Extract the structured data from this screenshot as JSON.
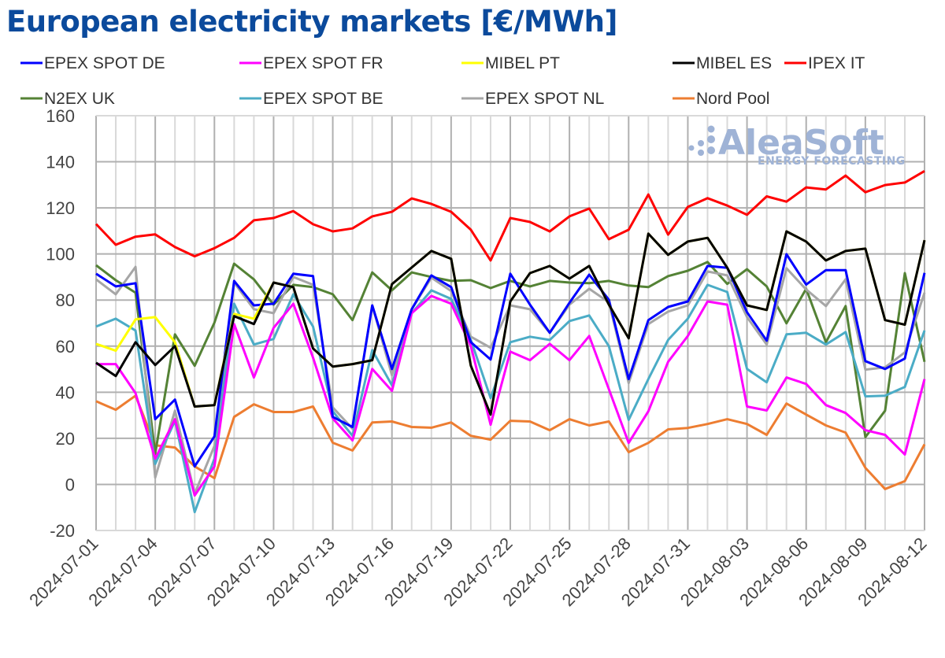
{
  "chart_data": {
    "type": "line",
    "title": "European electricity markets [€/MWh]",
    "xlabel": "",
    "ylabel": "€/MWh",
    "ylim": [
      -20,
      160
    ],
    "yticks": [
      -20,
      0,
      20,
      40,
      60,
      80,
      100,
      120,
      140,
      160
    ],
    "grid": true,
    "legend_position": "top",
    "watermark": {
      "main": "AleaSoft",
      "sub": "ENERGY FORECASTING"
    },
    "x": [
      "2024-07-01",
      "2024-07-02",
      "2024-07-03",
      "2024-07-04",
      "2024-07-05",
      "2024-07-06",
      "2024-07-07",
      "2024-07-08",
      "2024-07-09",
      "2024-07-10",
      "2024-07-11",
      "2024-07-12",
      "2024-07-13",
      "2024-07-14",
      "2024-07-15",
      "2024-07-16",
      "2024-07-17",
      "2024-07-18",
      "2024-07-19",
      "2024-07-20",
      "2024-07-21",
      "2024-07-22",
      "2024-07-23",
      "2024-07-24",
      "2024-07-25",
      "2024-07-26",
      "2024-07-27",
      "2024-07-28",
      "2024-07-29",
      "2024-07-30",
      "2024-07-31",
      "2024-08-01",
      "2024-08-02",
      "2024-08-03",
      "2024-08-04",
      "2024-08-05",
      "2024-08-06",
      "2024-08-07",
      "2024-08-08",
      "2024-08-09",
      "2024-08-10",
      "2024-08-11",
      "2024-08-12"
    ],
    "xtick_labels": [
      "2024-07-01",
      "2024-07-04",
      "2024-07-07",
      "2024-07-10",
      "2024-07-13",
      "2024-07-16",
      "2024-07-19",
      "2024-07-22",
      "2024-07-25",
      "2024-07-28",
      "2024-07-31",
      "2024-08-03",
      "2024-08-06",
      "2024-08-09",
      "2024-08-12"
    ],
    "series": [
      {
        "name": "EPEX SPOT DE",
        "color": "#0000ff",
        "values": [
          91.4,
          85.9,
          87.3,
          28.3,
          36.8,
          7.8,
          20.8,
          88.3,
          77.7,
          78.4,
          91.4,
          90.4,
          29.3,
          24.9,
          77.7,
          50.1,
          76.0,
          90.7,
          85.6,
          61.7,
          54.2,
          91.4,
          78.0,
          65.8,
          78.8,
          91.0,
          80.1,
          45.7,
          71.3,
          77.0,
          79.4,
          94.8,
          94.0,
          74.7,
          62.4,
          99.9,
          86.7,
          93.0,
          93.0,
          53.5,
          50.1,
          54.6,
          91.8
        ]
      },
      {
        "name": "EPEX SPOT FR",
        "color": "#ff00ff",
        "values": [
          52.2,
          52.2,
          39.6,
          11.2,
          28.3,
          -4.8,
          7.8,
          69.6,
          46.4,
          67.9,
          78.4,
          55.0,
          28.6,
          19.1,
          50.1,
          40.6,
          74.3,
          81.8,
          78.4,
          60.0,
          25.9,
          57.6,
          53.9,
          61.0,
          53.9,
          64.4,
          41.3,
          18.0,
          31.7,
          53.2,
          64.4,
          79.4,
          78.0,
          33.8,
          32.1,
          46.4,
          43.6,
          34.4,
          31.0,
          23.5,
          21.5,
          13.0,
          45.7
        ]
      },
      {
        "name": "MIBEL PT",
        "color": "#ffff00",
        "values": [
          61.0,
          58.0,
          71.6,
          72.6,
          61.7,
          33.8,
          34.4,
          74.0,
          71.9,
          87.6,
          85.6,
          59.0,
          51.1,
          52.2,
          53.9,
          86.9,
          94.1,
          101.3,
          97.9,
          51.5,
          30.3,
          79.4,
          91.7,
          94.8,
          89.3,
          94.8,
          78.0,
          63.4,
          108.8,
          99.6,
          105.4,
          107.0,
          94.0,
          77.7,
          75.7,
          109.8,
          105.4,
          97.2,
          101.3,
          102.3,
          71.3,
          69.3,
          106.0
        ]
      },
      {
        "name": "MIBEL ES",
        "color": "#000000",
        "values": [
          52.8,
          47.0,
          61.7,
          51.8,
          60.0,
          33.8,
          34.4,
          73.0,
          69.6,
          87.6,
          85.6,
          59.0,
          51.1,
          52.2,
          53.9,
          86.9,
          94.1,
          101.3,
          97.9,
          51.5,
          30.3,
          79.4,
          91.7,
          94.8,
          89.3,
          94.8,
          78.0,
          63.4,
          108.8,
          99.6,
          105.4,
          107.0,
          94.0,
          77.7,
          75.7,
          109.8,
          105.4,
          97.2,
          101.3,
          102.3,
          71.3,
          69.3,
          106.0
        ]
      },
      {
        "name": "IPEX IT",
        "color": "#ff0000",
        "values": [
          113.0,
          104.0,
          107.5,
          108.5,
          103.0,
          99.0,
          102.5,
          107.0,
          114.6,
          115.6,
          118.6,
          112.9,
          109.8,
          111.1,
          116.3,
          118.3,
          124.1,
          121.7,
          118.3,
          110.5,
          97.2,
          115.6,
          113.9,
          109.8,
          116.3,
          119.7,
          106.4,
          110.5,
          125.8,
          108.4,
          120.4,
          124.2,
          121.0,
          117.0,
          125.0,
          122.7,
          128.9,
          128.0,
          134.0,
          126.8,
          129.9,
          131.0,
          136.0
        ]
      },
      {
        "name": "N2EX UK",
        "color": "#548235",
        "values": [
          95.1,
          88.6,
          83.2,
          13.3,
          65.1,
          51.5,
          70.2,
          95.8,
          89.0,
          78.0,
          86.6,
          85.6,
          82.5,
          71.3,
          92.0,
          84.2,
          92.0,
          90.0,
          88.3,
          88.6,
          85.2,
          88.3,
          85.9,
          88.3,
          87.6,
          87.3,
          88.3,
          86.3,
          85.6,
          90.4,
          92.7,
          96.5,
          87.0,
          93.4,
          85.9,
          69.9,
          84.9,
          61.7,
          77.4,
          20.5,
          32.0,
          91.7,
          53.2
        ]
      },
      {
        "name": "EPEX SPOT BE",
        "color": "#4bacc6",
        "values": [
          68.5,
          71.9,
          66.8,
          8.9,
          27.6,
          -12.0,
          11.2,
          78.4,
          60.7,
          63.1,
          82.5,
          68.5,
          31.7,
          21.1,
          58.3,
          43.0,
          74.3,
          84.2,
          80.5,
          62.7,
          37.5,
          61.7,
          64.1,
          62.7,
          70.9,
          73.3,
          60.0,
          28.0,
          45.7,
          62.7,
          71.9,
          86.6,
          83.5,
          50.1,
          44.3,
          65.1,
          65.8,
          60.7,
          66.1,
          38.2,
          38.5,
          42.3,
          66.8
        ]
      },
      {
        "name": "EPEX SPOT NL",
        "color": "#a6a6a6",
        "values": [
          89.0,
          82.5,
          94.4,
          3.0,
          32.0,
          -4.0,
          16.7,
          87.6,
          76.0,
          74.3,
          90.0,
          86.6,
          33.4,
          24.2,
          77.7,
          47.4,
          76.0,
          89.7,
          83.9,
          64.1,
          59.3,
          77.7,
          76.0,
          65.8,
          78.0,
          84.9,
          79.0,
          44.0,
          69.6,
          75.0,
          77.7,
          92.4,
          90.7,
          72.6,
          60.7,
          93.8,
          84.6,
          77.4,
          89.0,
          49.8,
          50.8,
          57.3,
          83.2
        ]
      },
      {
        "name": "Nord Pool",
        "color": "#ed7d31",
        "values": [
          36.1,
          32.4,
          38.5,
          17.0,
          16.0,
          7.8,
          2.7,
          29.3,
          34.8,
          31.4,
          31.4,
          33.8,
          18.1,
          14.7,
          26.9,
          27.3,
          24.9,
          24.6,
          26.9,
          21.1,
          19.4,
          27.6,
          27.3,
          23.5,
          28.3,
          25.6,
          27.3,
          14.0,
          18.0,
          23.9,
          24.5,
          26.2,
          28.3,
          26.2,
          21.5,
          35.1,
          30.3,
          25.6,
          22.5,
          7.2,
          -2.0,
          1.4,
          17.4
        ]
      }
    ],
    "legend_order": [
      [
        "EPEX SPOT DE",
        "EPEX SPOT FR",
        "MIBEL PT",
        "MIBEL ES",
        "IPEX IT"
      ],
      [
        "N2EX UK",
        "EPEX SPOT BE",
        "EPEX SPOT NL",
        "Nord Pool"
      ]
    ]
  }
}
